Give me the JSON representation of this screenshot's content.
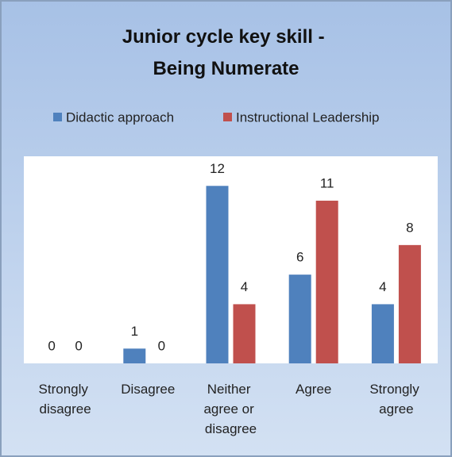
{
  "chart_data": {
    "type": "bar",
    "title": "Junior cycle key skill - Being Numerate",
    "categories": [
      "Strongly disagree",
      "Disagree",
      "Neither agree or disagree",
      "Agree",
      "Strongly agree"
    ],
    "series": [
      {
        "name": "Didactic approach",
        "color": "#4f81bd",
        "values": [
          0,
          1,
          12,
          6,
          4
        ]
      },
      {
        "name": "Instructional Leadership",
        "color": "#c0504d",
        "values": [
          0,
          0,
          4,
          11,
          8
        ]
      }
    ],
    "ylim": [
      0,
      14
    ],
    "legend": "top",
    "data_labels": true
  }
}
